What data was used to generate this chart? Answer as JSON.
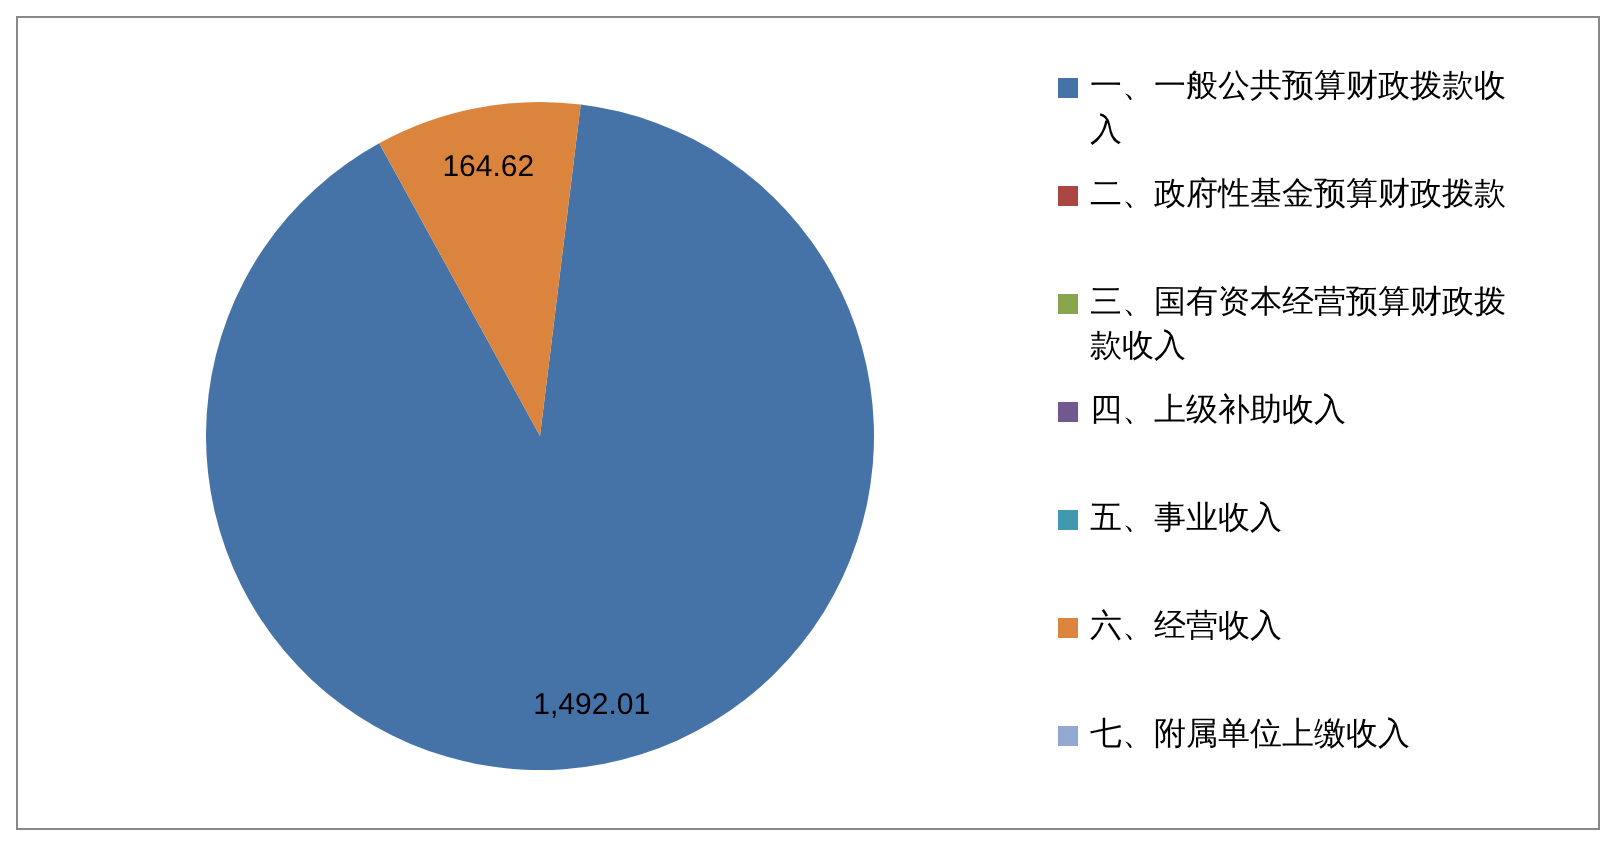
{
  "chart_data": {
    "type": "pie",
    "categories": [
      "一、一般公共预算财政拨款收入",
      "二、政府性基金预算财政拨款",
      "三、国有资本经营预算财政拨款收入",
      "四、上级补助收入",
      "五、事业收入",
      "六、经营收入",
      "七、附属单位上缴收入"
    ],
    "values": [
      1492.01,
      0,
      0,
      0,
      0,
      164.62,
      0
    ],
    "colors": [
      "#4572a7",
      "#aa4643",
      "#89a54e",
      "#71588f",
      "#4198af",
      "#db843d",
      "#93a9cf"
    ],
    "value_labels": [
      "1,492.01",
      null,
      null,
      null,
      null,
      "164.62",
      null
    ],
    "legend": "right"
  }
}
